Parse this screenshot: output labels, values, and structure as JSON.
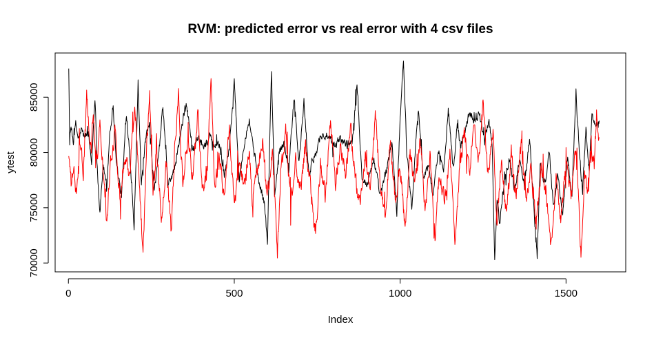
{
  "chart_data": {
    "type": "line",
    "title": "RVM: predicted error vs real error with 4 csv files",
    "xlabel": "Index",
    "ylabel": "ytest",
    "xlim": [
      -40,
      1680
    ],
    "ylim": [
      69200,
      89000
    ],
    "x_ticks": [
      0,
      500,
      1000,
      1500
    ],
    "x_tick_labels": [
      "0",
      "500",
      "1000",
      "1500"
    ],
    "y_ticks": [
      70000,
      75000,
      80000,
      85000
    ],
    "y_tick_labels": [
      "70000",
      "75000",
      "80000",
      "85000"
    ],
    "grid": false,
    "n_points": 1600,
    "series": [
      {
        "color": "#000000",
        "key_points": [
          [
            1,
            87800
          ],
          [
            4,
            80800
          ],
          [
            8,
            82200
          ],
          [
            15,
            81000
          ],
          [
            22,
            82500
          ],
          [
            30,
            81200
          ],
          [
            40,
            82000
          ],
          [
            48,
            81400
          ],
          [
            60,
            81800
          ],
          [
            70,
            79000
          ],
          [
            80,
            85200
          ],
          [
            88,
            78000
          ],
          [
            95,
            74600
          ],
          [
            105,
            79000
          ],
          [
            115,
            76500
          ],
          [
            125,
            82000
          ],
          [
            135,
            84200
          ],
          [
            145,
            79000
          ],
          [
            160,
            76000
          ],
          [
            175,
            83600
          ],
          [
            185,
            80000
          ],
          [
            198,
            73200
          ],
          [
            210,
            86400
          ],
          [
            220,
            77000
          ],
          [
            232,
            81000
          ],
          [
            245,
            82500
          ],
          [
            258,
            76500
          ],
          [
            270,
            79000
          ],
          [
            285,
            84200
          ],
          [
            300,
            77000
          ],
          [
            320,
            78500
          ],
          [
            335,
            81000
          ],
          [
            355,
            84500
          ],
          [
            375,
            80200
          ],
          [
            392,
            81000
          ],
          [
            410,
            80600
          ],
          [
            425,
            81400
          ],
          [
            440,
            80500
          ],
          [
            455,
            80800
          ],
          [
            470,
            78000
          ],
          [
            485,
            80500
          ],
          [
            500,
            86400
          ],
          [
            515,
            77500
          ],
          [
            530,
            81000
          ],
          [
            545,
            83000
          ],
          [
            560,
            80000
          ],
          [
            575,
            77200
          ],
          [
            590,
            75500
          ],
          [
            600,
            72000
          ],
          [
            612,
            87400
          ],
          [
            622,
            76000
          ],
          [
            635,
            80000
          ],
          [
            650,
            81000
          ],
          [
            665,
            78500
          ],
          [
            680,
            85000
          ],
          [
            695,
            79000
          ],
          [
            710,
            84500
          ],
          [
            725,
            78000
          ],
          [
            745,
            80000
          ],
          [
            760,
            81500
          ],
          [
            780,
            81500
          ],
          [
            800,
            80500
          ],
          [
            820,
            81300
          ],
          [
            840,
            80700
          ],
          [
            855,
            81000
          ],
          [
            870,
            86100
          ],
          [
            885,
            78000
          ],
          [
            900,
            77000
          ],
          [
            920,
            79500
          ],
          [
            940,
            76000
          ],
          [
            960,
            78500
          ],
          [
            975,
            81000
          ],
          [
            990,
            74500
          ],
          [
            1000,
            83400
          ],
          [
            1010,
            88400
          ],
          [
            1020,
            80000
          ],
          [
            1035,
            75000
          ],
          [
            1045,
            80000
          ],
          [
            1055,
            84000
          ],
          [
            1070,
            77500
          ],
          [
            1085,
            79000
          ],
          [
            1100,
            76000
          ],
          [
            1115,
            80500
          ],
          [
            1130,
            78000
          ],
          [
            1145,
            84000
          ],
          [
            1160,
            78500
          ],
          [
            1172,
            82500
          ],
          [
            1182,
            80500
          ],
          [
            1195,
            82000
          ],
          [
            1210,
            83700
          ],
          [
            1225,
            83000
          ],
          [
            1240,
            83500
          ],
          [
            1255,
            81000
          ],
          [
            1268,
            83000
          ],
          [
            1278,
            80000
          ],
          [
            1285,
            70000
          ],
          [
            1292,
            76000
          ],
          [
            1300,
            73500
          ],
          [
            1315,
            78000
          ],
          [
            1330,
            79500
          ],
          [
            1345,
            76500
          ],
          [
            1360,
            79500
          ],
          [
            1375,
            77000
          ],
          [
            1390,
            81500
          ],
          [
            1405,
            74000
          ],
          [
            1413,
            70500
          ],
          [
            1422,
            79000
          ],
          [
            1435,
            77000
          ],
          [
            1450,
            80000
          ],
          [
            1462,
            75000
          ],
          [
            1475,
            78000
          ],
          [
            1490,
            74500
          ],
          [
            1505,
            79500
          ],
          [
            1518,
            76000
          ],
          [
            1530,
            85500
          ],
          [
            1540,
            80000
          ],
          [
            1550,
            76500
          ],
          [
            1560,
            82200
          ],
          [
            1570,
            78500
          ],
          [
            1578,
            83200
          ],
          [
            1590,
            82400
          ],
          [
            1600,
            82900
          ]
        ]
      },
      {
        "color": "#ff0000",
        "key_points": [
          [
            1,
            79900
          ],
          [
            8,
            77000
          ],
          [
            15,
            78500
          ],
          [
            25,
            76000
          ],
          [
            35,
            80500
          ],
          [
            45,
            78000
          ],
          [
            55,
            85100
          ],
          [
            65,
            80000
          ],
          [
            75,
            83400
          ],
          [
            85,
            79000
          ],
          [
            95,
            82500
          ],
          [
            105,
            78000
          ],
          [
            115,
            73600
          ],
          [
            125,
            78500
          ],
          [
            140,
            82000
          ],
          [
            155,
            76000
          ],
          [
            170,
            80000
          ],
          [
            185,
            78000
          ],
          [
            200,
            84500
          ],
          [
            215,
            77000
          ],
          [
            225,
            70600
          ],
          [
            235,
            80000
          ],
          [
            245,
            84900
          ],
          [
            255,
            76000
          ],
          [
            265,
            81000
          ],
          [
            280,
            74000
          ],
          [
            295,
            79000
          ],
          [
            310,
            72600
          ],
          [
            320,
            80000
          ],
          [
            332,
            85200
          ],
          [
            345,
            77000
          ],
          [
            360,
            81000
          ],
          [
            375,
            78000
          ],
          [
            390,
            83500
          ],
          [
            405,
            76500
          ],
          [
            420,
            79000
          ],
          [
            430,
            87500
          ],
          [
            440,
            77000
          ],
          [
            455,
            79500
          ],
          [
            470,
            76000
          ],
          [
            485,
            82500
          ],
          [
            500,
            75000
          ],
          [
            515,
            79000
          ],
          [
            530,
            77000
          ],
          [
            545,
            80000
          ],
          [
            555,
            75500
          ],
          [
            570,
            78000
          ],
          [
            585,
            81000
          ],
          [
            600,
            76000
          ],
          [
            615,
            80000
          ],
          [
            630,
            70700
          ],
          [
            640,
            78000
          ],
          [
            655,
            82000
          ],
          [
            670,
            75500
          ],
          [
            685,
            79000
          ],
          [
            700,
            76500
          ],
          [
            715,
            80500
          ],
          [
            730,
            77000
          ],
          [
            745,
            72500
          ],
          [
            760,
            79000
          ],
          [
            775,
            76000
          ],
          [
            790,
            83000
          ],
          [
            805,
            77000
          ],
          [
            820,
            80500
          ],
          [
            835,
            78000
          ],
          [
            850,
            82500
          ],
          [
            865,
            77500
          ],
          [
            880,
            75000
          ],
          [
            895,
            79500
          ],
          [
            910,
            76000
          ],
          [
            925,
            83500
          ],
          [
            940,
            77000
          ],
          [
            955,
            74000
          ],
          [
            970,
            81500
          ],
          [
            985,
            75500
          ],
          [
            1000,
            79000
          ],
          [
            1015,
            72700
          ],
          [
            1030,
            80000
          ],
          [
            1045,
            77000
          ],
          [
            1060,
            81500
          ],
          [
            1075,
            74500
          ],
          [
            1090,
            79500
          ],
          [
            1105,
            72800
          ],
          [
            1120,
            78000
          ],
          [
            1135,
            75500
          ],
          [
            1150,
            80500
          ],
          [
            1165,
            71500
          ],
          [
            1180,
            79000
          ],
          [
            1195,
            81500
          ],
          [
            1210,
            77500
          ],
          [
            1222,
            82500
          ],
          [
            1235,
            79000
          ],
          [
            1250,
            84300
          ],
          [
            1265,
            78000
          ],
          [
            1280,
            81500
          ],
          [
            1292,
            73000
          ],
          [
            1305,
            79000
          ],
          [
            1320,
            74500
          ],
          [
            1335,
            80000
          ],
          [
            1350,
            76000
          ],
          [
            1365,
            80500
          ],
          [
            1380,
            75500
          ],
          [
            1395,
            78500
          ],
          [
            1410,
            73500
          ],
          [
            1425,
            79000
          ],
          [
            1440,
            76500
          ],
          [
            1455,
            71500
          ],
          [
            1470,
            78000
          ],
          [
            1485,
            74000
          ],
          [
            1500,
            79500
          ],
          [
            1515,
            76000
          ],
          [
            1530,
            80000
          ],
          [
            1545,
            71100
          ],
          [
            1555,
            78000
          ],
          [
            1565,
            76500
          ],
          [
            1575,
            80000
          ],
          [
            1585,
            79000
          ],
          [
            1592,
            83500
          ],
          [
            1600,
            81300
          ]
        ]
      }
    ]
  }
}
